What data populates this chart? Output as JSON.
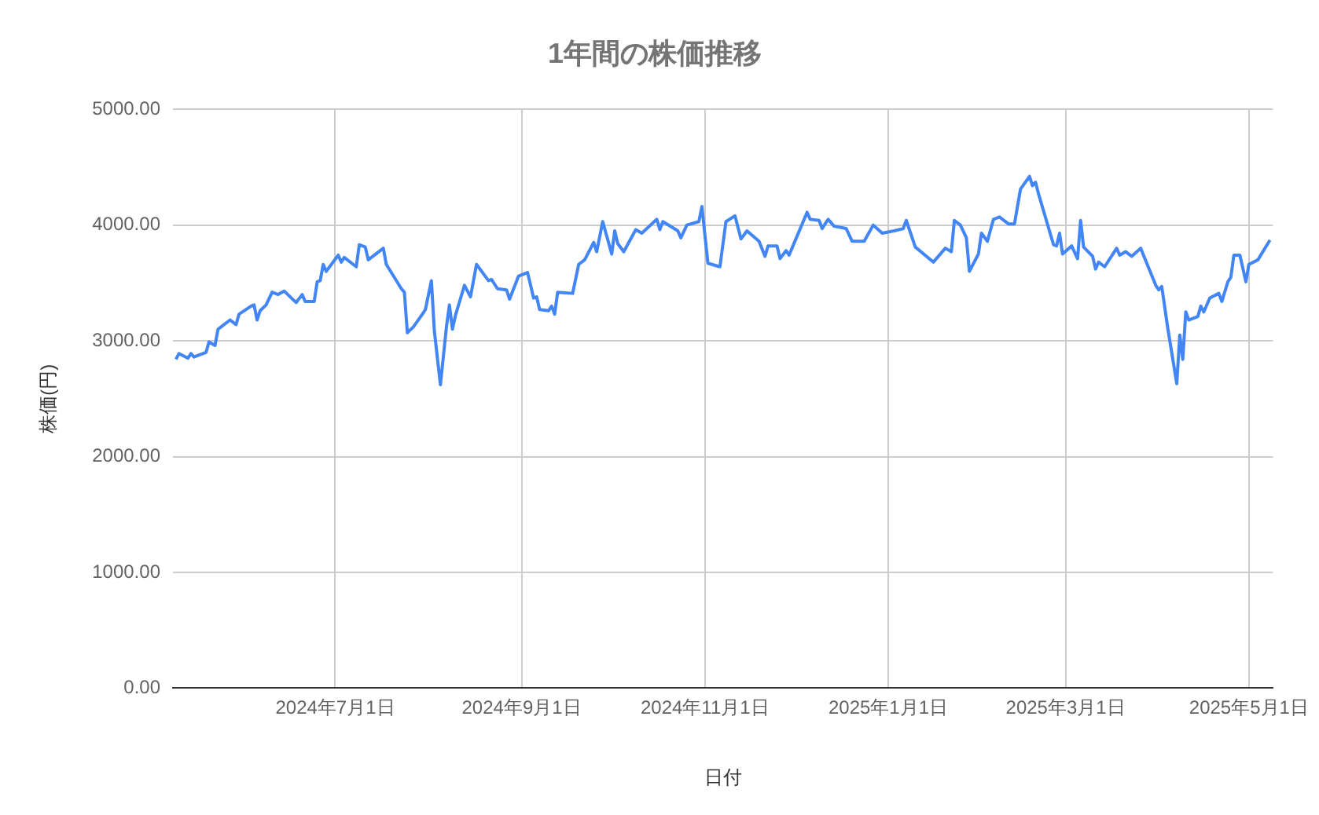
{
  "chart_data": {
    "type": "line",
    "title": "1年間の株価推移",
    "xlabel": "日付",
    "ylabel": "株価(円)",
    "grid": true,
    "legend": false,
    "marker": "none",
    "line_style": "solid",
    "xlim": [
      "2024-05-08",
      "2025-05-09"
    ],
    "xticks": [
      {
        "value": "2024-07-01",
        "label": "2024年7月1日"
      },
      {
        "value": "2024-09-01",
        "label": "2024年9月1日"
      },
      {
        "value": "2024-11-01",
        "label": "2024年11月1日"
      },
      {
        "value": "2025-01-01",
        "label": "2025年1月1日"
      },
      {
        "value": "2025-03-01",
        "label": "2025年3月1日"
      },
      {
        "value": "2025-05-01",
        "label": "2025年5月1日"
      }
    ],
    "ylim": [
      0,
      5000
    ],
    "yticks": [
      {
        "value": 0,
        "label": "0.00"
      },
      {
        "value": 1000,
        "label": "1000.00"
      },
      {
        "value": 2000,
        "label": "2000.00"
      },
      {
        "value": 3000,
        "label": "3000.00"
      },
      {
        "value": 4000,
        "label": "4000.00"
      },
      {
        "value": 5000,
        "label": "5000.00"
      }
    ],
    "x": [
      "2024-05-09",
      "2024-05-10",
      "2024-05-13",
      "2024-05-14",
      "2024-05-15",
      "2024-05-19",
      "2024-05-20",
      "2024-05-22",
      "2024-05-23",
      "2024-05-27",
      "2024-05-29",
      "2024-05-30",
      "2024-06-03",
      "2024-06-04",
      "2024-06-05",
      "2024-06-06",
      "2024-06-08",
      "2024-06-10",
      "2024-06-12",
      "2024-06-14",
      "2024-06-18",
      "2024-06-20",
      "2024-06-21",
      "2024-06-24",
      "2024-06-25",
      "2024-06-26",
      "2024-06-27",
      "2024-06-28",
      "2024-07-02",
      "2024-07-03",
      "2024-07-04",
      "2024-07-08",
      "2024-07-09",
      "2024-07-11",
      "2024-07-12",
      "2024-07-17",
      "2024-07-18",
      "2024-07-23",
      "2024-07-24",
      "2024-07-25",
      "2024-07-27",
      "2024-07-30",
      "2024-07-31",
      "2024-08-02",
      "2024-08-03",
      "2024-08-05",
      "2024-08-07",
      "2024-08-08",
      "2024-08-09",
      "2024-08-10",
      "2024-08-13",
      "2024-08-15",
      "2024-08-17",
      "2024-08-21",
      "2024-08-22",
      "2024-08-24",
      "2024-08-27",
      "2024-08-28",
      "2024-08-31",
      "2024-09-03",
      "2024-09-05",
      "2024-09-06",
      "2024-09-07",
      "2024-09-10",
      "2024-09-11",
      "2024-09-12",
      "2024-09-13",
      "2024-09-18",
      "2024-09-20",
      "2024-09-22",
      "2024-09-25",
      "2024-09-26",
      "2024-09-28",
      "2024-10-01",
      "2024-10-02",
      "2024-10-03",
      "2024-10-05",
      "2024-10-09",
      "2024-10-11",
      "2024-10-16",
      "2024-10-17",
      "2024-10-18",
      "2024-10-23",
      "2024-10-24",
      "2024-10-26",
      "2024-10-30",
      "2024-10-31",
      "2024-11-02",
      "2024-11-06",
      "2024-11-08",
      "2024-11-11",
      "2024-11-13",
      "2024-11-15",
      "2024-11-19",
      "2024-11-21",
      "2024-11-22",
      "2024-11-25",
      "2024-11-26",
      "2024-11-28",
      "2024-11-29",
      "2024-12-05",
      "2024-12-06",
      "2024-12-09",
      "2024-12-10",
      "2024-12-12",
      "2024-12-14",
      "2024-12-18",
      "2024-12-20",
      "2024-12-24",
      "2024-12-27",
      "2024-12-30",
      "2025-01-03",
      "2025-01-06",
      "2025-01-07",
      "2025-01-10",
      "2025-01-16",
      "2025-01-20",
      "2025-01-22",
      "2025-01-23",
      "2025-01-25",
      "2025-01-27",
      "2025-01-28",
      "2025-01-31",
      "2025-02-01",
      "2025-02-03",
      "2025-02-05",
      "2025-02-07",
      "2025-02-10",
      "2025-02-12",
      "2025-02-14",
      "2025-02-17",
      "2025-02-18",
      "2025-02-19",
      "2025-02-20",
      "2025-02-25",
      "2025-02-26",
      "2025-02-27",
      "2025-02-28",
      "2025-03-03",
      "2025-03-05",
      "2025-03-06",
      "2025-03-07",
      "2025-03-10",
      "2025-03-11",
      "2025-03-12",
      "2025-03-14",
      "2025-03-18",
      "2025-03-19",
      "2025-03-21",
      "2025-03-23",
      "2025-03-26",
      "2025-03-31",
      "2025-04-01",
      "2025-04-02",
      "2025-04-04",
      "2025-04-07",
      "2025-04-08",
      "2025-04-09",
      "2025-04-10",
      "2025-04-11",
      "2025-04-14",
      "2025-04-15",
      "2025-04-16",
      "2025-04-18",
      "2025-04-21",
      "2025-04-22",
      "2025-04-24",
      "2025-04-25",
      "2025-04-26",
      "2025-04-28",
      "2025-04-30",
      "2025-05-01",
      "2025-05-04",
      "2025-05-08"
    ],
    "series": [
      {
        "color": "#4285f4",
        "values": [
          2840,
          2890,
          2850,
          2890,
          2860,
          2900,
          2990,
          2960,
          3100,
          3180,
          3140,
          3230,
          3300,
          3310,
          3180,
          3260,
          3310,
          3420,
          3400,
          3430,
          3330,
          3400,
          3340,
          3340,
          3510,
          3520,
          3660,
          3600,
          3740,
          3680,
          3720,
          3640,
          3830,
          3810,
          3700,
          3800,
          3660,
          3450,
          3420,
          3070,
          3120,
          3230,
          3270,
          3520,
          3080,
          2620,
          3120,
          3310,
          3100,
          3220,
          3480,
          3380,
          3660,
          3520,
          3530,
          3450,
          3440,
          3360,
          3560,
          3590,
          3370,
          3380,
          3270,
          3260,
          3300,
          3230,
          3420,
          3410,
          3660,
          3700,
          3850,
          3770,
          4030,
          3750,
          3950,
          3840,
          3770,
          3960,
          3930,
          4050,
          3960,
          4030,
          3950,
          3890,
          4000,
          4030,
          4160,
          3670,
          3640,
          4030,
          4080,
          3880,
          3950,
          3860,
          3730,
          3820,
          3820,
          3710,
          3780,
          3740,
          4110,
          4050,
          4040,
          3970,
          4050,
          3990,
          3970,
          3860,
          3860,
          4000,
          3930,
          3950,
          3970,
          4040,
          3810,
          3680,
          3800,
          3770,
          4040,
          4000,
          3890,
          3600,
          3750,
          3930,
          3860,
          4050,
          4070,
          4010,
          4010,
          4310,
          4420,
          4340,
          4370,
          4270,
          3830,
          3820,
          3930,
          3750,
          3820,
          3710,
          4040,
          3810,
          3730,
          3620,
          3680,
          3640,
          3800,
          3740,
          3770,
          3730,
          3800,
          3480,
          3440,
          3470,
          3110,
          2630,
          3050,
          2840,
          3250,
          3180,
          3210,
          3300,
          3250,
          3370,
          3410,
          3340,
          3510,
          3550,
          3740,
          3740,
          3510,
          3660,
          3700,
          3870
        ]
      }
    ]
  }
}
